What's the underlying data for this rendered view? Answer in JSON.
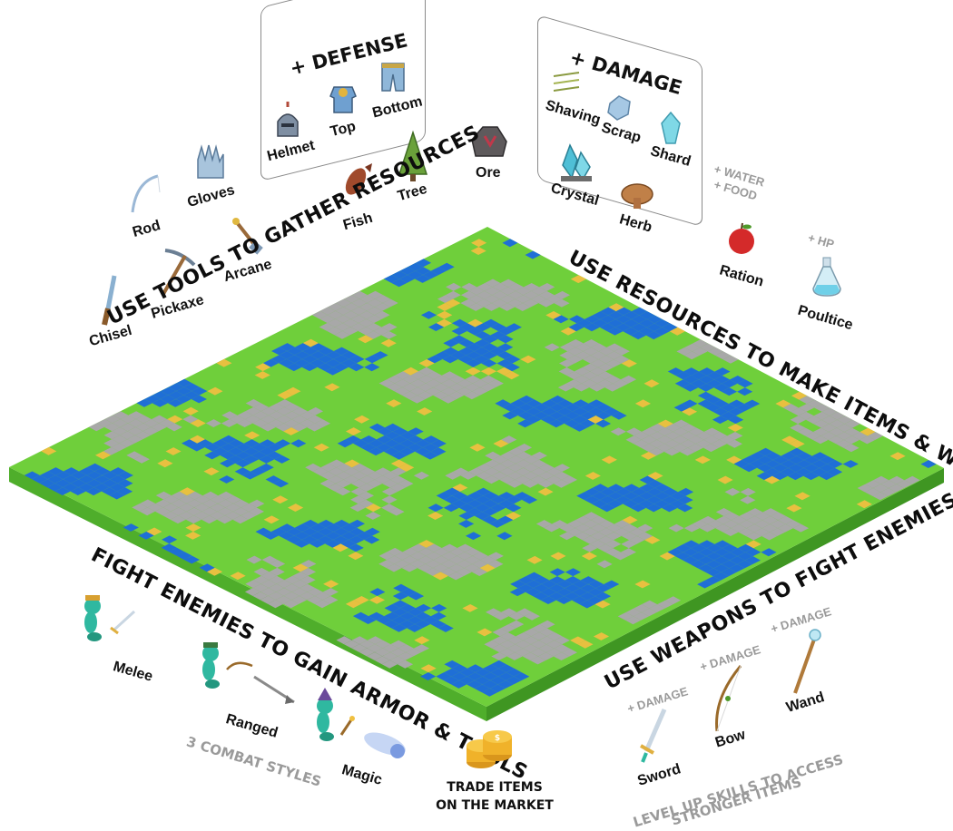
{
  "defense_box": {
    "title": "+ DEFENSE",
    "items": [
      "Helmet",
      "Top",
      "Bottom"
    ]
  },
  "damage_box": {
    "title": "+ DAMAGE",
    "items": [
      "Shaving",
      "Scrap",
      "Shard"
    ]
  },
  "tools": [
    "Rod",
    "Gloves",
    "Chisel",
    "Pickaxe",
    "Arcane"
  ],
  "resources": [
    "Fish",
    "Tree",
    "Ore",
    "Crystal",
    "Herb"
  ],
  "consumables": {
    "ration": "Ration",
    "ration_tag_1": "+ WATER",
    "ration_tag_2": "+ FOOD",
    "poultice": "Poultice",
    "poultice_tag": "+ HP"
  },
  "headings": {
    "top_left": "USE TOOLS TO GATHER RESOURCES",
    "top_right": "USE RESOURCES TO MAKE ITEMS & WEAPONS",
    "bottom_left": "FIGHT ENEMIES TO GAIN ARMOR & TOOLS",
    "bottom_right": "USE WEAPONS TO FIGHT ENEMIES"
  },
  "combat": {
    "styles": [
      "Melee",
      "Ranged",
      "Magic"
    ],
    "caption": "3 COMBAT STYLES"
  },
  "weapons": {
    "items": [
      "Sword",
      "Bow",
      "Wand"
    ],
    "damage_tag": "+ DAMAGE"
  },
  "market": {
    "line1": "TRADE ITEMS",
    "line2": "ON THE MARKET"
  },
  "level_up": {
    "line1": "LEVEL UP SKILLS TO ACCESS",
    "line2": "STRONGER ITEMS"
  },
  "colors": {
    "grass": "#6fcf3b",
    "water": "#1f6fd6",
    "stone": "#a8a8a8",
    "flower": "#e8c040",
    "side_front": "#4fae2b",
    "side_right": "#3f9622"
  }
}
